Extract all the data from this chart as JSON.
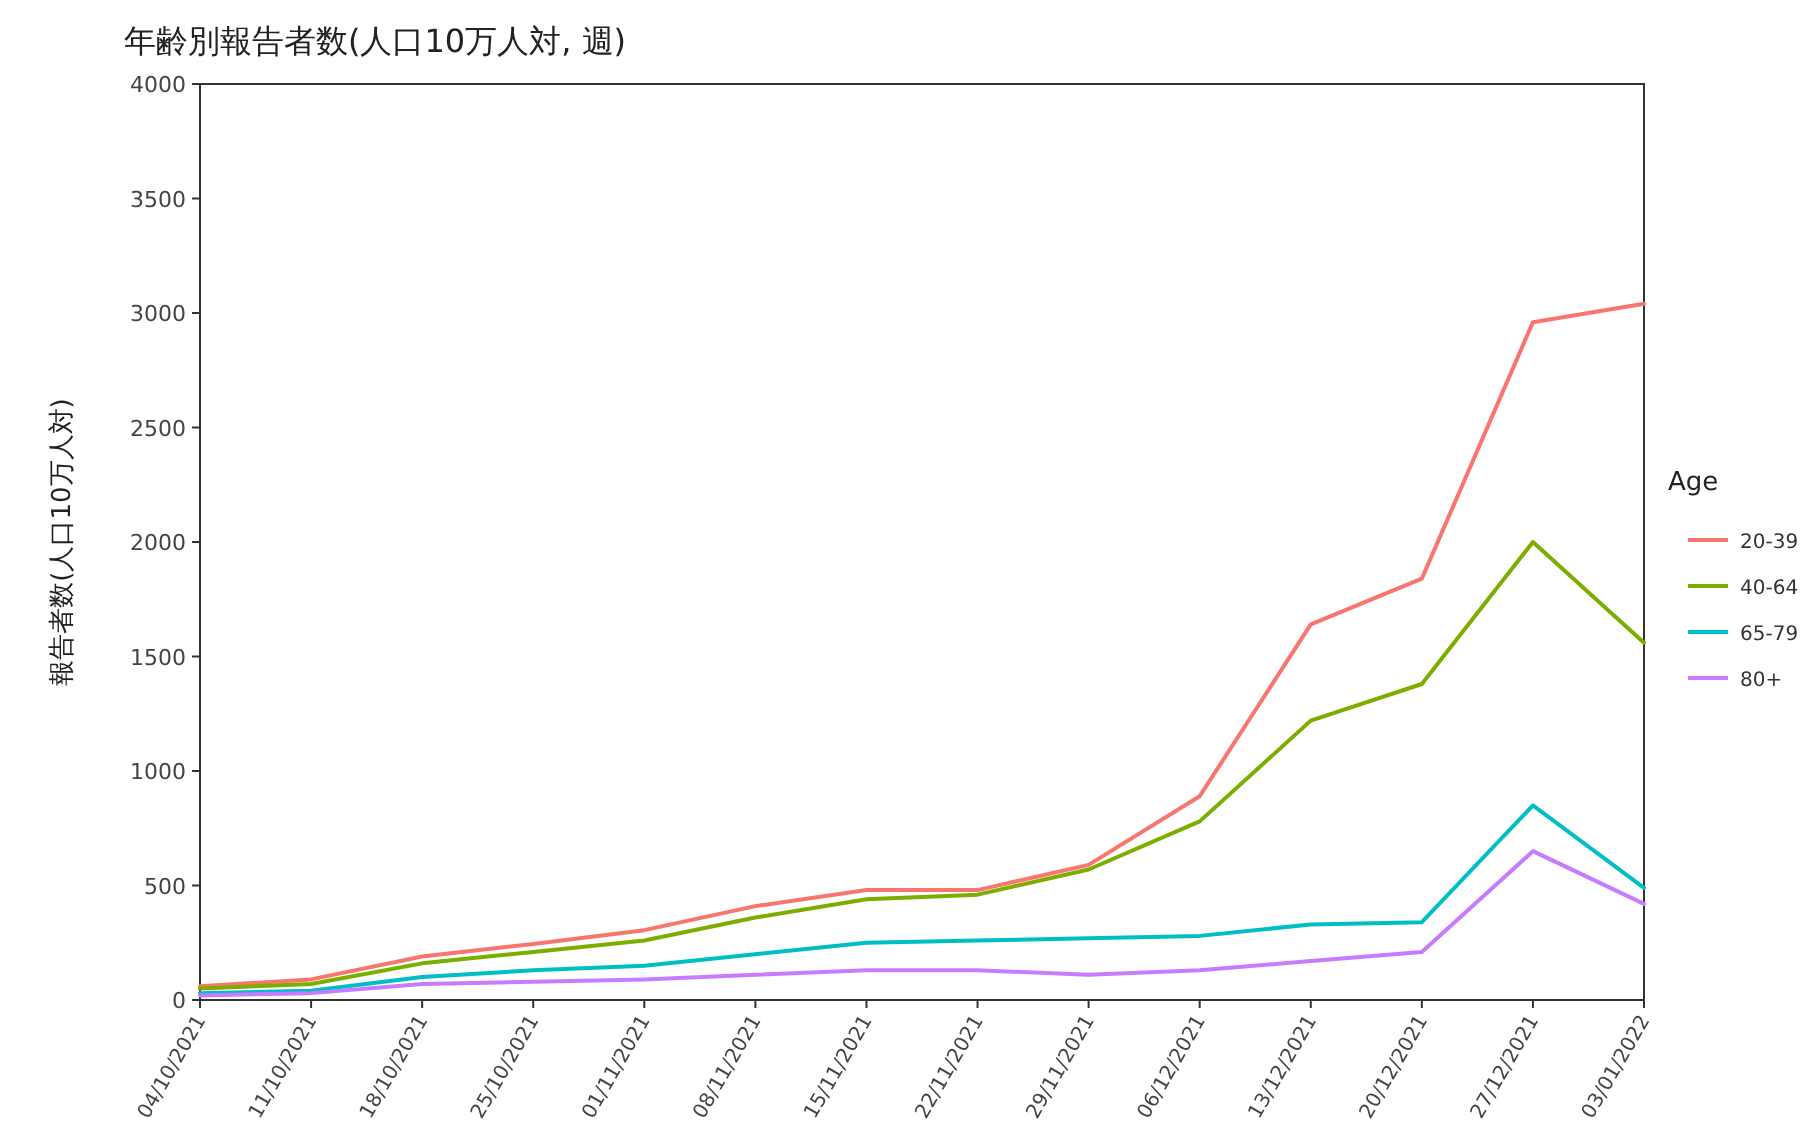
{
  "chart_data": {
    "type": "line",
    "title": "年齢別報告者数(人口10万人対, 週)",
    "ylabel": "報告者数(人口10万人対)",
    "legend_title": "Age",
    "legend": "right",
    "categories": [
      "04/10/2021",
      "11/10/2021",
      "18/10/2021",
      "25/10/2021",
      "01/11/2021",
      "08/11/2021",
      "15/11/2021",
      "22/11/2021",
      "29/11/2021",
      "06/12/2021",
      "13/12/2021",
      "20/12/2021",
      "27/12/2021",
      "03/01/2022"
    ],
    "ylim": [
      0,
      4000
    ],
    "yticks": [
      0,
      500,
      1000,
      1500,
      2000,
      2500,
      3000,
      3500,
      4000
    ],
    "series": [
      {
        "name": "20-39",
        "color": "#f8766d",
        "values": [
          60,
          90,
          190,
          245,
          305,
          410,
          480,
          480,
          590,
          890,
          1640,
          1840,
          2960,
          3040
        ]
      },
      {
        "name": "40-64",
        "color": "#7cae00",
        "values": [
          50,
          70,
          160,
          210,
          260,
          360,
          440,
          460,
          570,
          780,
          1220,
          1380,
          2000,
          1560
        ]
      },
      {
        "name": "65-79",
        "color": "#00bfc4",
        "values": [
          30,
          40,
          100,
          130,
          150,
          200,
          250,
          260,
          270,
          280,
          330,
          340,
          850,
          490
        ]
      },
      {
        "name": "80+",
        "color": "#c77cff",
        "values": [
          20,
          30,
          70,
          80,
          90,
          110,
          130,
          130,
          110,
          130,
          170,
          210,
          650,
          420
        ]
      }
    ]
  }
}
